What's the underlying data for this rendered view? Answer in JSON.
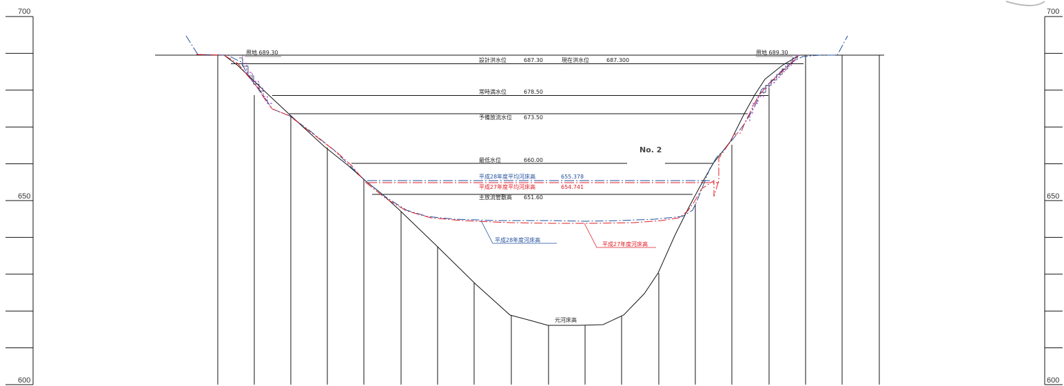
{
  "axis": {
    "left_ticks": [
      {
        "value": 700,
        "label": "700"
      },
      {
        "value": 650,
        "label": "650"
      },
      {
        "value": 600,
        "label": "600"
      }
    ],
    "right_ticks": [
      {
        "value": 700,
        "label": "700"
      },
      {
        "value": 650,
        "label": "650"
      },
      {
        "value": 600,
        "label": "600"
      }
    ],
    "minor_step": 10,
    "range": [
      600,
      700
    ]
  },
  "station": "No. 2",
  "colors": {
    "ground": "#111111",
    "h28": "#1f4e9c",
    "h27": "#e01b24",
    "purple": "#9b30b8"
  },
  "land": {
    "left": {
      "text": "用地",
      "value": "689.30"
    },
    "right": {
      "text": "用地",
      "value": "689.30"
    }
  },
  "water_levels": [
    {
      "id": "design-flood",
      "text": "設計洪水位",
      "value": "687.30",
      "elevation": 687.3,
      "extra_text": "現在洪水位",
      "extra_value": "687.300"
    },
    {
      "id": "normal-full",
      "text": "常時満水位",
      "value": "678.50",
      "elevation": 678.5
    },
    {
      "id": "spare-discharge",
      "text": "予備放流水位",
      "value": "673.50",
      "elevation": 673.5
    },
    {
      "id": "minimum",
      "text": "最低水位",
      "value": "660.00",
      "elevation": 660.0
    }
  ],
  "avg_bed": [
    {
      "id": "h28-avg",
      "text": "平成28年度平均河床高",
      "value": "655.378",
      "elevation": 655.378,
      "color": "#1f4e9c"
    },
    {
      "id": "h27-avg",
      "text": "平成27年度平均河床高",
      "value": "654.741",
      "elevation": 654.741,
      "color": "#e01b24"
    }
  ],
  "main_outlet": {
    "text": "主放流管敷高",
    "value": "651.60",
    "elevation": 651.6
  },
  "bed_labels": {
    "h28": "平成28年度河床高",
    "h27": "平成27年度河床高",
    "original": "元河床高"
  }
}
